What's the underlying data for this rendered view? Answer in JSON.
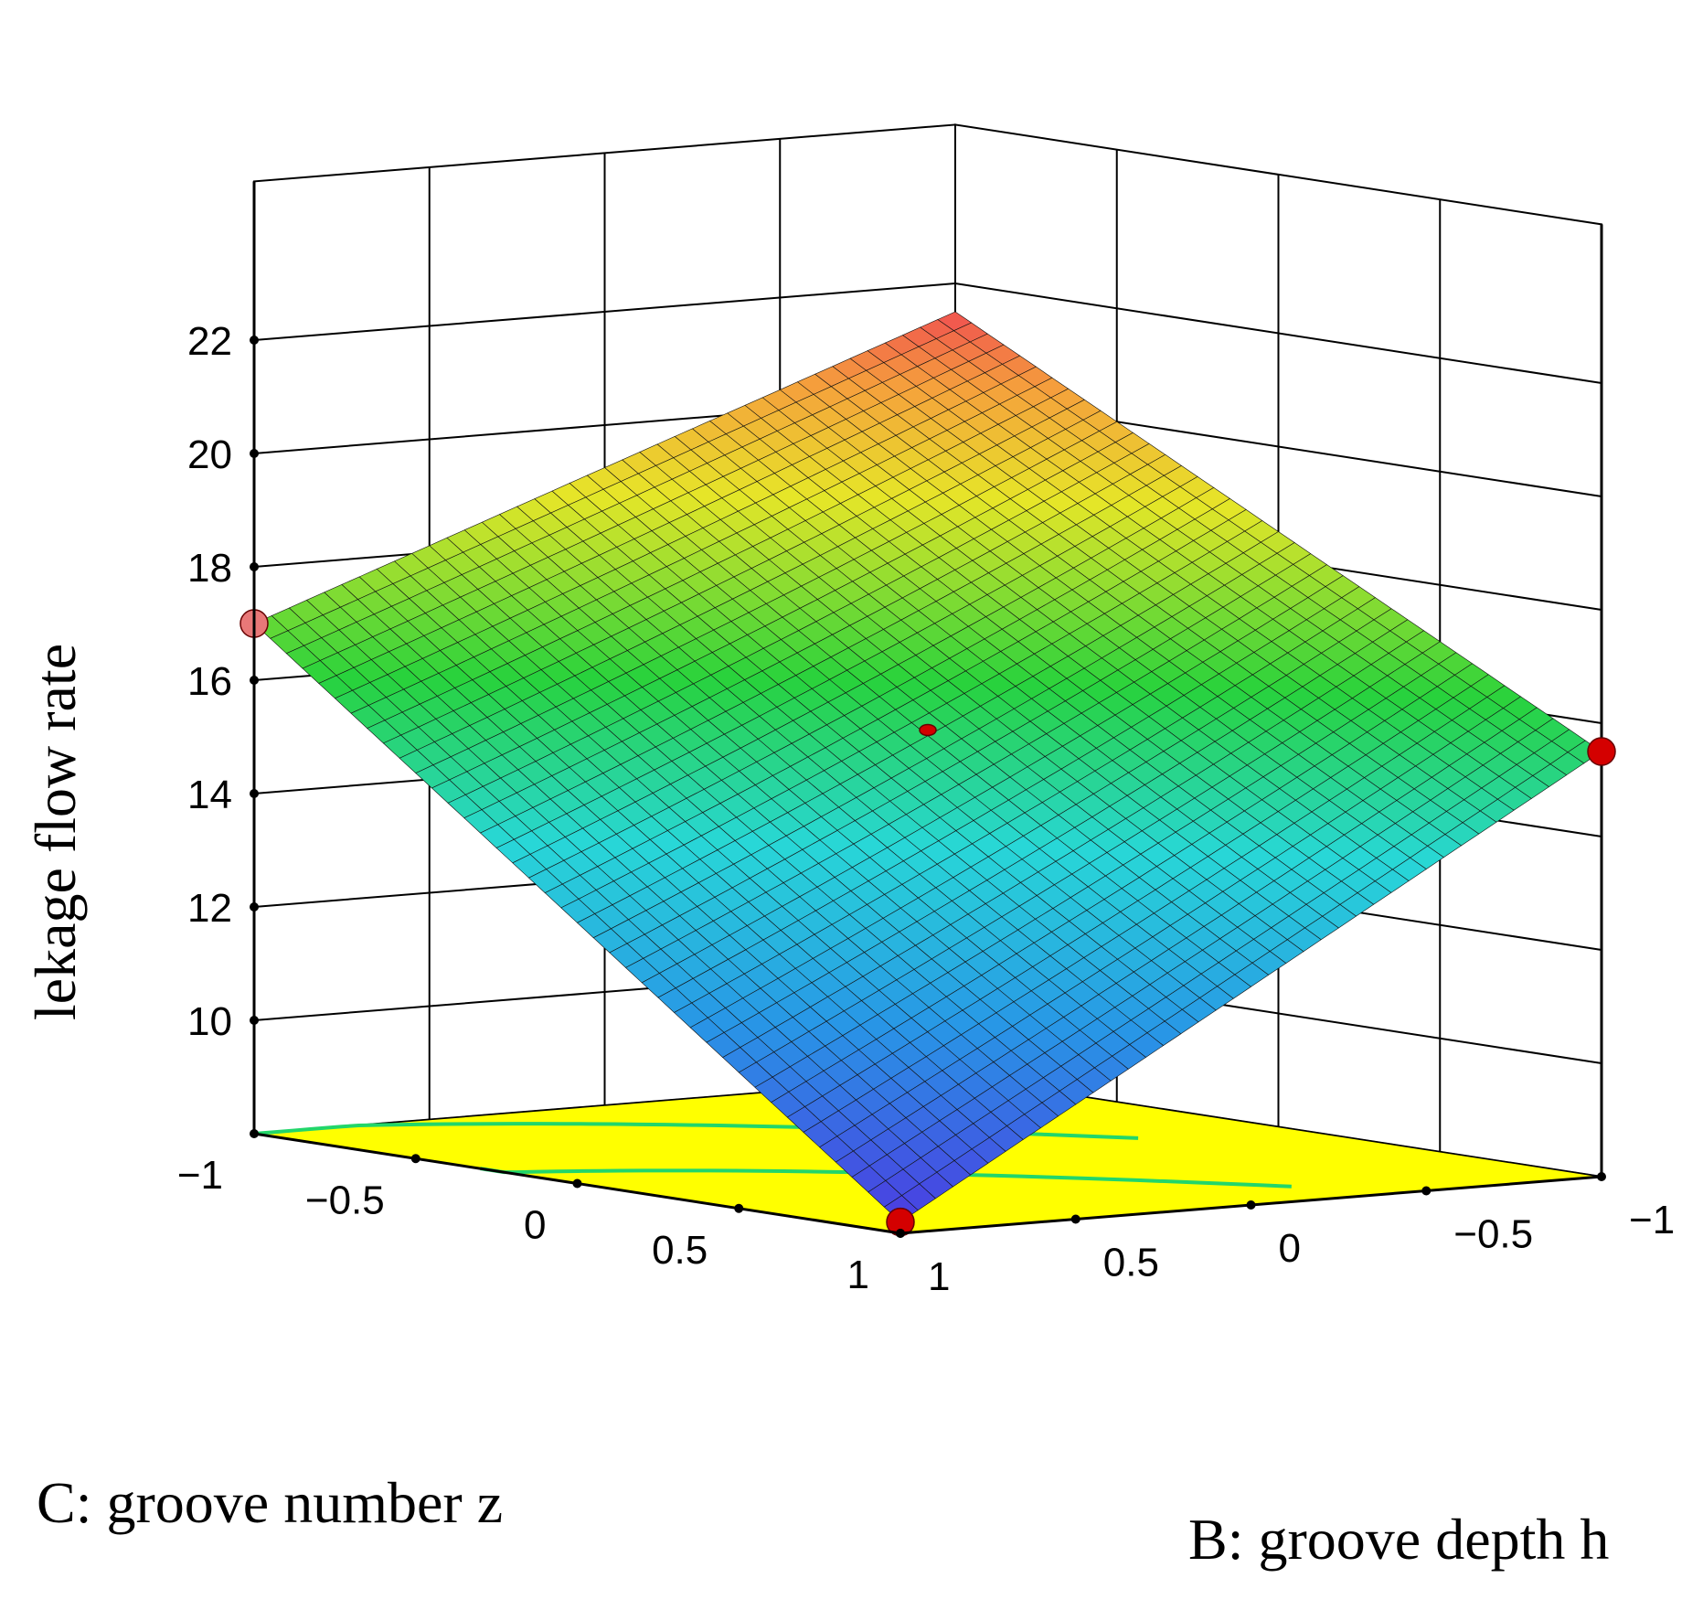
{
  "chart_data": {
    "type": "surface3d",
    "title": "",
    "zlabel": "lekage flow rate",
    "xlabel": "C: groove number z",
    "ylabel": "B: groove depth h",
    "z_ticks": [
      "10",
      "12",
      "14",
      "16",
      "18",
      "20",
      "22"
    ],
    "x_ticks": [
      "-1",
      "-0.5",
      "0",
      "0.5",
      "1"
    ],
    "y_ticks": [
      "-1",
      "-0.5",
      "0",
      "0.5",
      "1"
    ],
    "x_range": [
      -1,
      1
    ],
    "y_range": [
      -1,
      1
    ],
    "z_range": [
      8,
      22
    ],
    "surface_corners": [
      {
        "C": -1,
        "B": -1,
        "value": 21.5
      },
      {
        "C": -1,
        "B": 1,
        "value": 17.0
      },
      {
        "C": 1,
        "B": -1,
        "value": 15.5
      },
      {
        "C": 1,
        "B": 1,
        "value": 8.2
      }
    ],
    "design_points": [
      {
        "C": -1,
        "B": 1,
        "value": 17.0,
        "color": "#e87878"
      },
      {
        "C": 1,
        "B": -1,
        "value": 15.5,
        "color": "#d40000"
      },
      {
        "C": 0,
        "B": 0,
        "value": 15.5,
        "color": "#d40000"
      },
      {
        "C": 1,
        "B": 1,
        "value": 8.2,
        "color": "#d40000"
      }
    ],
    "floor_color": "#ffff00",
    "floor_contour_color": "#22d66a",
    "grid": true
  }
}
